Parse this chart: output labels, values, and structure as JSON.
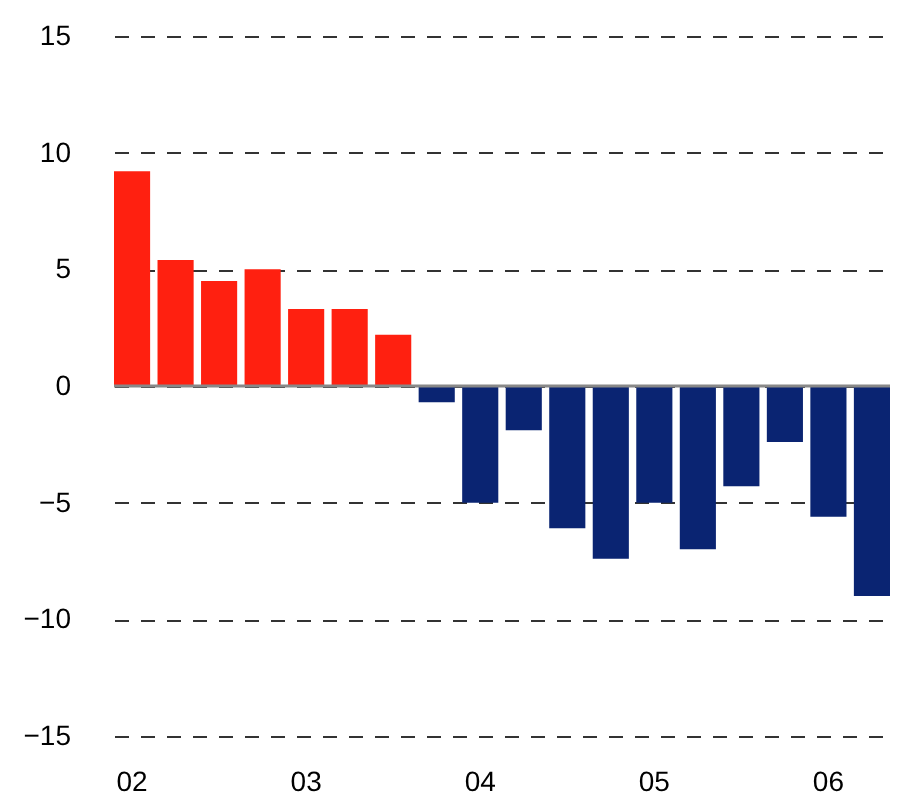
{
  "chart_data": {
    "type": "bar",
    "categories": [
      "02",
      null,
      null,
      null,
      "03",
      null,
      null,
      null,
      "04",
      null,
      null,
      null,
      "05",
      null,
      null,
      null,
      "06",
      null
    ],
    "values": [
      9.2,
      5.4,
      4.5,
      5.0,
      3.3,
      3.3,
      2.2,
      -0.7,
      -5.0,
      -1.9,
      -6.1,
      -7.4,
      -5.0,
      -7.0,
      -4.3,
      -2.4,
      -5.6,
      -9.0
    ],
    "colors": [
      "#ff2010",
      "#ff2010",
      "#ff2010",
      "#ff2010",
      "#ff2010",
      "#ff2010",
      "#ff2010",
      "#0a2472",
      "#0a2472",
      "#0a2472",
      "#0a2472",
      "#0a2472",
      "#0a2472",
      "#0a2472",
      "#0a2472",
      "#0a2472",
      "#0a2472",
      "#0a2472"
    ],
    "ylim": [
      -15,
      15
    ],
    "yticks": [
      -15,
      -10,
      -5,
      0,
      5,
      10,
      15
    ],
    "grid": "y"
  }
}
